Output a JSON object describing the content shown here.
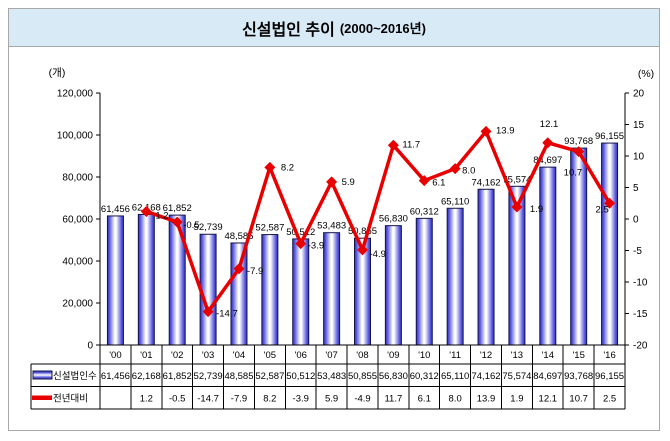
{
  "header": {
    "title_main": "신설법인  추이",
    "title_range": "(2000~2016년)",
    "band_color": "#d9eaf7"
  },
  "axes": {
    "left_unit": "(개)",
    "right_unit": "(%)",
    "left_ticks": [
      "120,000",
      "100,000",
      "80,000",
      "60,000",
      "40,000",
      "20,000",
      "0"
    ],
    "right_ticks": [
      "20",
      "15",
      "10",
      "5",
      "0",
      "-5",
      "-10",
      "-15",
      "-20"
    ]
  },
  "chart_data": {
    "type": "bar",
    "subtype": "bar-line-combo",
    "title": "신설법인 추이 (2000~2016년)",
    "categories": [
      "'00",
      "'01",
      "'02",
      "'03",
      "'04",
      "'05",
      "'06",
      "'07",
      "'08",
      "'09",
      "'10",
      "'11",
      "'12",
      "'13",
      "'14",
      "'15",
      "'16"
    ],
    "series": [
      {
        "name": "신설법인수",
        "type": "bar",
        "axis": "left",
        "values": [
          61456,
          62168,
          61852,
          52739,
          48585,
          52587,
          50512,
          53483,
          50855,
          56830,
          60312,
          65110,
          74162,
          75574,
          84697,
          93768,
          96155
        ],
        "labels": [
          "61,456",
          "62,168",
          "61,852",
          "52,739",
          "48,585",
          "52,587",
          "50,512",
          "53,483",
          "50,855",
          "56,830",
          "60,312",
          "65,110",
          "74,162",
          "75,574",
          "84,697",
          "93,768",
          "96,155"
        ],
        "color": "#4040d8",
        "border_color": "#14144a"
      },
      {
        "name": "전년대비",
        "type": "line",
        "axis": "right",
        "values": [
          null,
          1.2,
          -0.5,
          -14.7,
          -7.9,
          8.2,
          -3.9,
          5.9,
          -4.9,
          11.7,
          6.1,
          8.0,
          13.9,
          1.9,
          12.1,
          10.7,
          2.5
        ],
        "labels": [
          "",
          "1.2",
          "-0.5",
          "-14.7",
          "-7.9",
          "8.2",
          "-3.9",
          "5.9",
          "-4.9",
          "11.7",
          "6.1",
          "8.0",
          "13.9",
          "1.9",
          "12.1",
          "10.7",
          "2.5"
        ],
        "color": "#e80000",
        "marker": "diamond"
      }
    ],
    "left_axis": {
      "label": "(개)",
      "min": 0,
      "max": 120000,
      "step": 20000
    },
    "right_axis": {
      "label": "(%)",
      "min": -20,
      "max": 20,
      "step": 5
    },
    "grid": false,
    "legend_position": "data-table-left",
    "data_labels": true
  },
  "table": {
    "row_headers": [
      "신설법인수",
      "전년대비"
    ]
  }
}
